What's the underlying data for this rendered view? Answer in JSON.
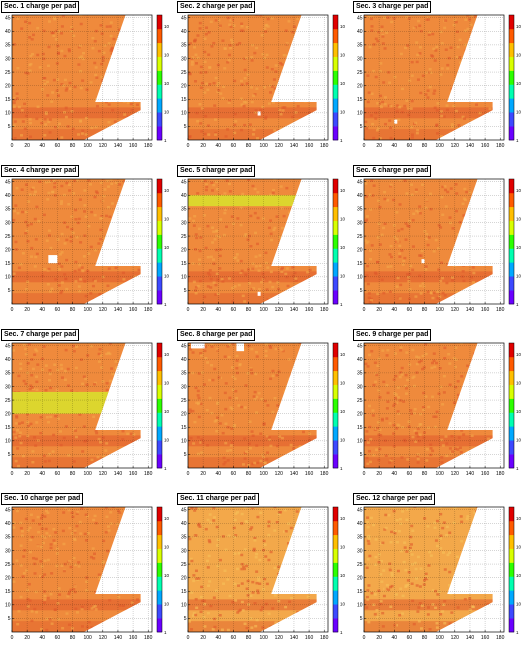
{
  "chart_data": {
    "type": "heatmap",
    "panels": [
      {
        "title": "Sec. 1 charge per pad",
        "tone": "normal",
        "bands": [],
        "holes": []
      },
      {
        "title": "Sec. 2 charge per pad",
        "tone": "normal",
        "bands": [],
        "holes": [
          {
            "x": 92,
            "y": 9,
            "w": 4,
            "h": 1.5
          }
        ]
      },
      {
        "title": "Sec. 3 charge per pad",
        "tone": "normal",
        "bands": [],
        "holes": [
          {
            "x": 40,
            "y": 6,
            "w": 4,
            "h": 1.5
          }
        ]
      },
      {
        "title": "Sec. 4 charge per pad",
        "tone": "normal",
        "bands": [],
        "holes": [
          {
            "x": 48,
            "y": 15,
            "w": 12,
            "h": 3
          }
        ]
      },
      {
        "title": "Sec. 5 charge per pad",
        "tone": "normal",
        "bands": [
          {
            "y0": 36,
            "y1": 40,
            "color": "#dcd62e"
          }
        ],
        "holes": [
          {
            "x": 92,
            "y": 3,
            "w": 4,
            "h": 1.5
          }
        ]
      },
      {
        "title": "Sec. 6 charge per pad",
        "tone": "normal",
        "bands": [],
        "holes": [
          {
            "x": 76,
            "y": 15,
            "w": 4,
            "h": 1.5
          }
        ]
      },
      {
        "title": "Sec. 7 charge per pad",
        "tone": "normal",
        "bands": [
          {
            "y0": 20,
            "y1": 28,
            "color": "#dcd62e"
          }
        ],
        "holes": []
      },
      {
        "title": "Sec. 8 charge per pad",
        "tone": "normal",
        "bands": [],
        "holes": [
          {
            "x": 4,
            "y": 44,
            "w": 18,
            "h": 2
          },
          {
            "x": 64,
            "y": 43,
            "w": 10,
            "h": 3
          }
        ]
      },
      {
        "title": "Sec. 9 charge per pad",
        "tone": "normal",
        "bands": [],
        "holes": []
      },
      {
        "title": "Sec. 10 charge per pad",
        "tone": "normal",
        "bands": [],
        "holes": []
      },
      {
        "title": "Sec. 11 charge per pad",
        "tone": "light",
        "bands": [],
        "holes": []
      },
      {
        "title": "Sec. 12 charge per pad",
        "tone": "light",
        "bands": [],
        "holes": []
      }
    ],
    "x_ticks": [
      "0",
      "20",
      "40",
      "60",
      "80",
      "100",
      "120",
      "140",
      "160",
      "180"
    ],
    "y_ticks": [
      "5",
      "10",
      "15",
      "20",
      "25",
      "30",
      "35",
      "40",
      "45"
    ],
    "xlim": [
      0,
      185
    ],
    "ylim": [
      0,
      46
    ],
    "colorbar_labels": [
      "1",
      "10",
      "10",
      "10",
      "10"
    ],
    "colorbar_scale": "log",
    "colors": {
      "base": "#ef8a3c",
      "light": "#f3a84a",
      "dark": "#e05a2b",
      "colorbar": [
        "#6a00ff",
        "#3d49ff",
        "#00a8ff",
        "#00ffb0",
        "#2cff00",
        "#d8ff00",
        "#ffbf00",
        "#ff5a00",
        "#e00000"
      ]
    }
  }
}
